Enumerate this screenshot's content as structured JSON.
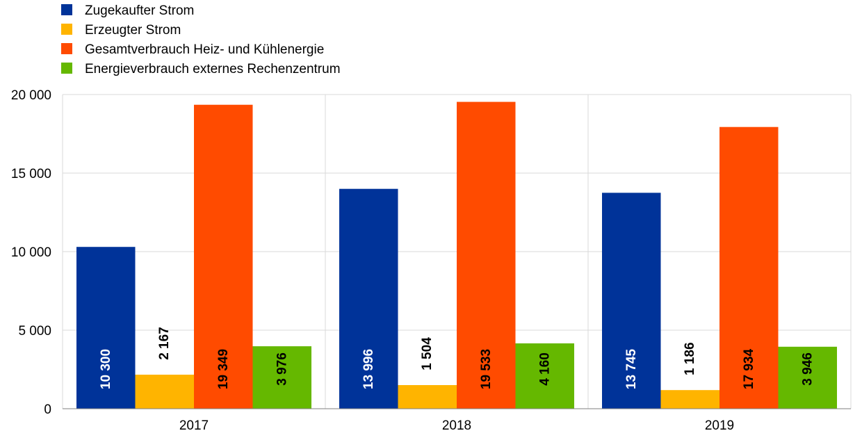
{
  "chart_data": {
    "type": "bar",
    "categories": [
      "2017",
      "2018",
      "2019"
    ],
    "series": [
      {
        "name": "Zugekaufter Strom",
        "color": "#003399",
        "values": [
          10300,
          13996,
          13745
        ],
        "labels": [
          "10 300",
          "13 996",
          "13 745"
        ],
        "label_color": "#ffffff"
      },
      {
        "name": "Erzeugter Strom",
        "color": "#ffb400",
        "values": [
          2167,
          1504,
          1186
        ],
        "labels": [
          "2 167",
          "1 504",
          "1 186"
        ],
        "label_color": "#000000"
      },
      {
        "name": "Gesamtverbrauch Heiz- und Kühlenergie",
        "color": "#ff4b00",
        "values": [
          19349,
          19533,
          17934
        ],
        "labels": [
          "19 349",
          "19 533",
          "17 934"
        ],
        "label_color": "#000000"
      },
      {
        "name": "Energieverbrauch externes Rechenzentrum",
        "color": "#65b800",
        "values": [
          3976,
          4160,
          3946
        ],
        "labels": [
          "3 976",
          "4 160",
          "3 946"
        ],
        "label_color": "#000000"
      }
    ],
    "y_ticks": [
      0,
      5000,
      10000,
      15000,
      20000
    ],
    "y_tick_labels": [
      "0",
      "5 000",
      "10 000",
      "15 000",
      "20 000"
    ],
    "ylim": [
      0,
      20000
    ],
    "grid": true,
    "legend_position": "top-left"
  }
}
